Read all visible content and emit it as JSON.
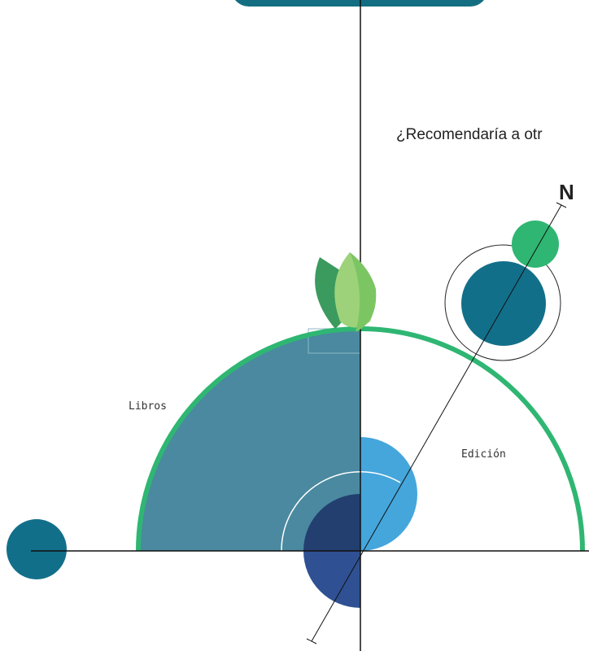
{
  "question": "¿Recomendaría a otr",
  "compass": "N",
  "labels": [
    "Libros",
    "Edición"
  ]
}
